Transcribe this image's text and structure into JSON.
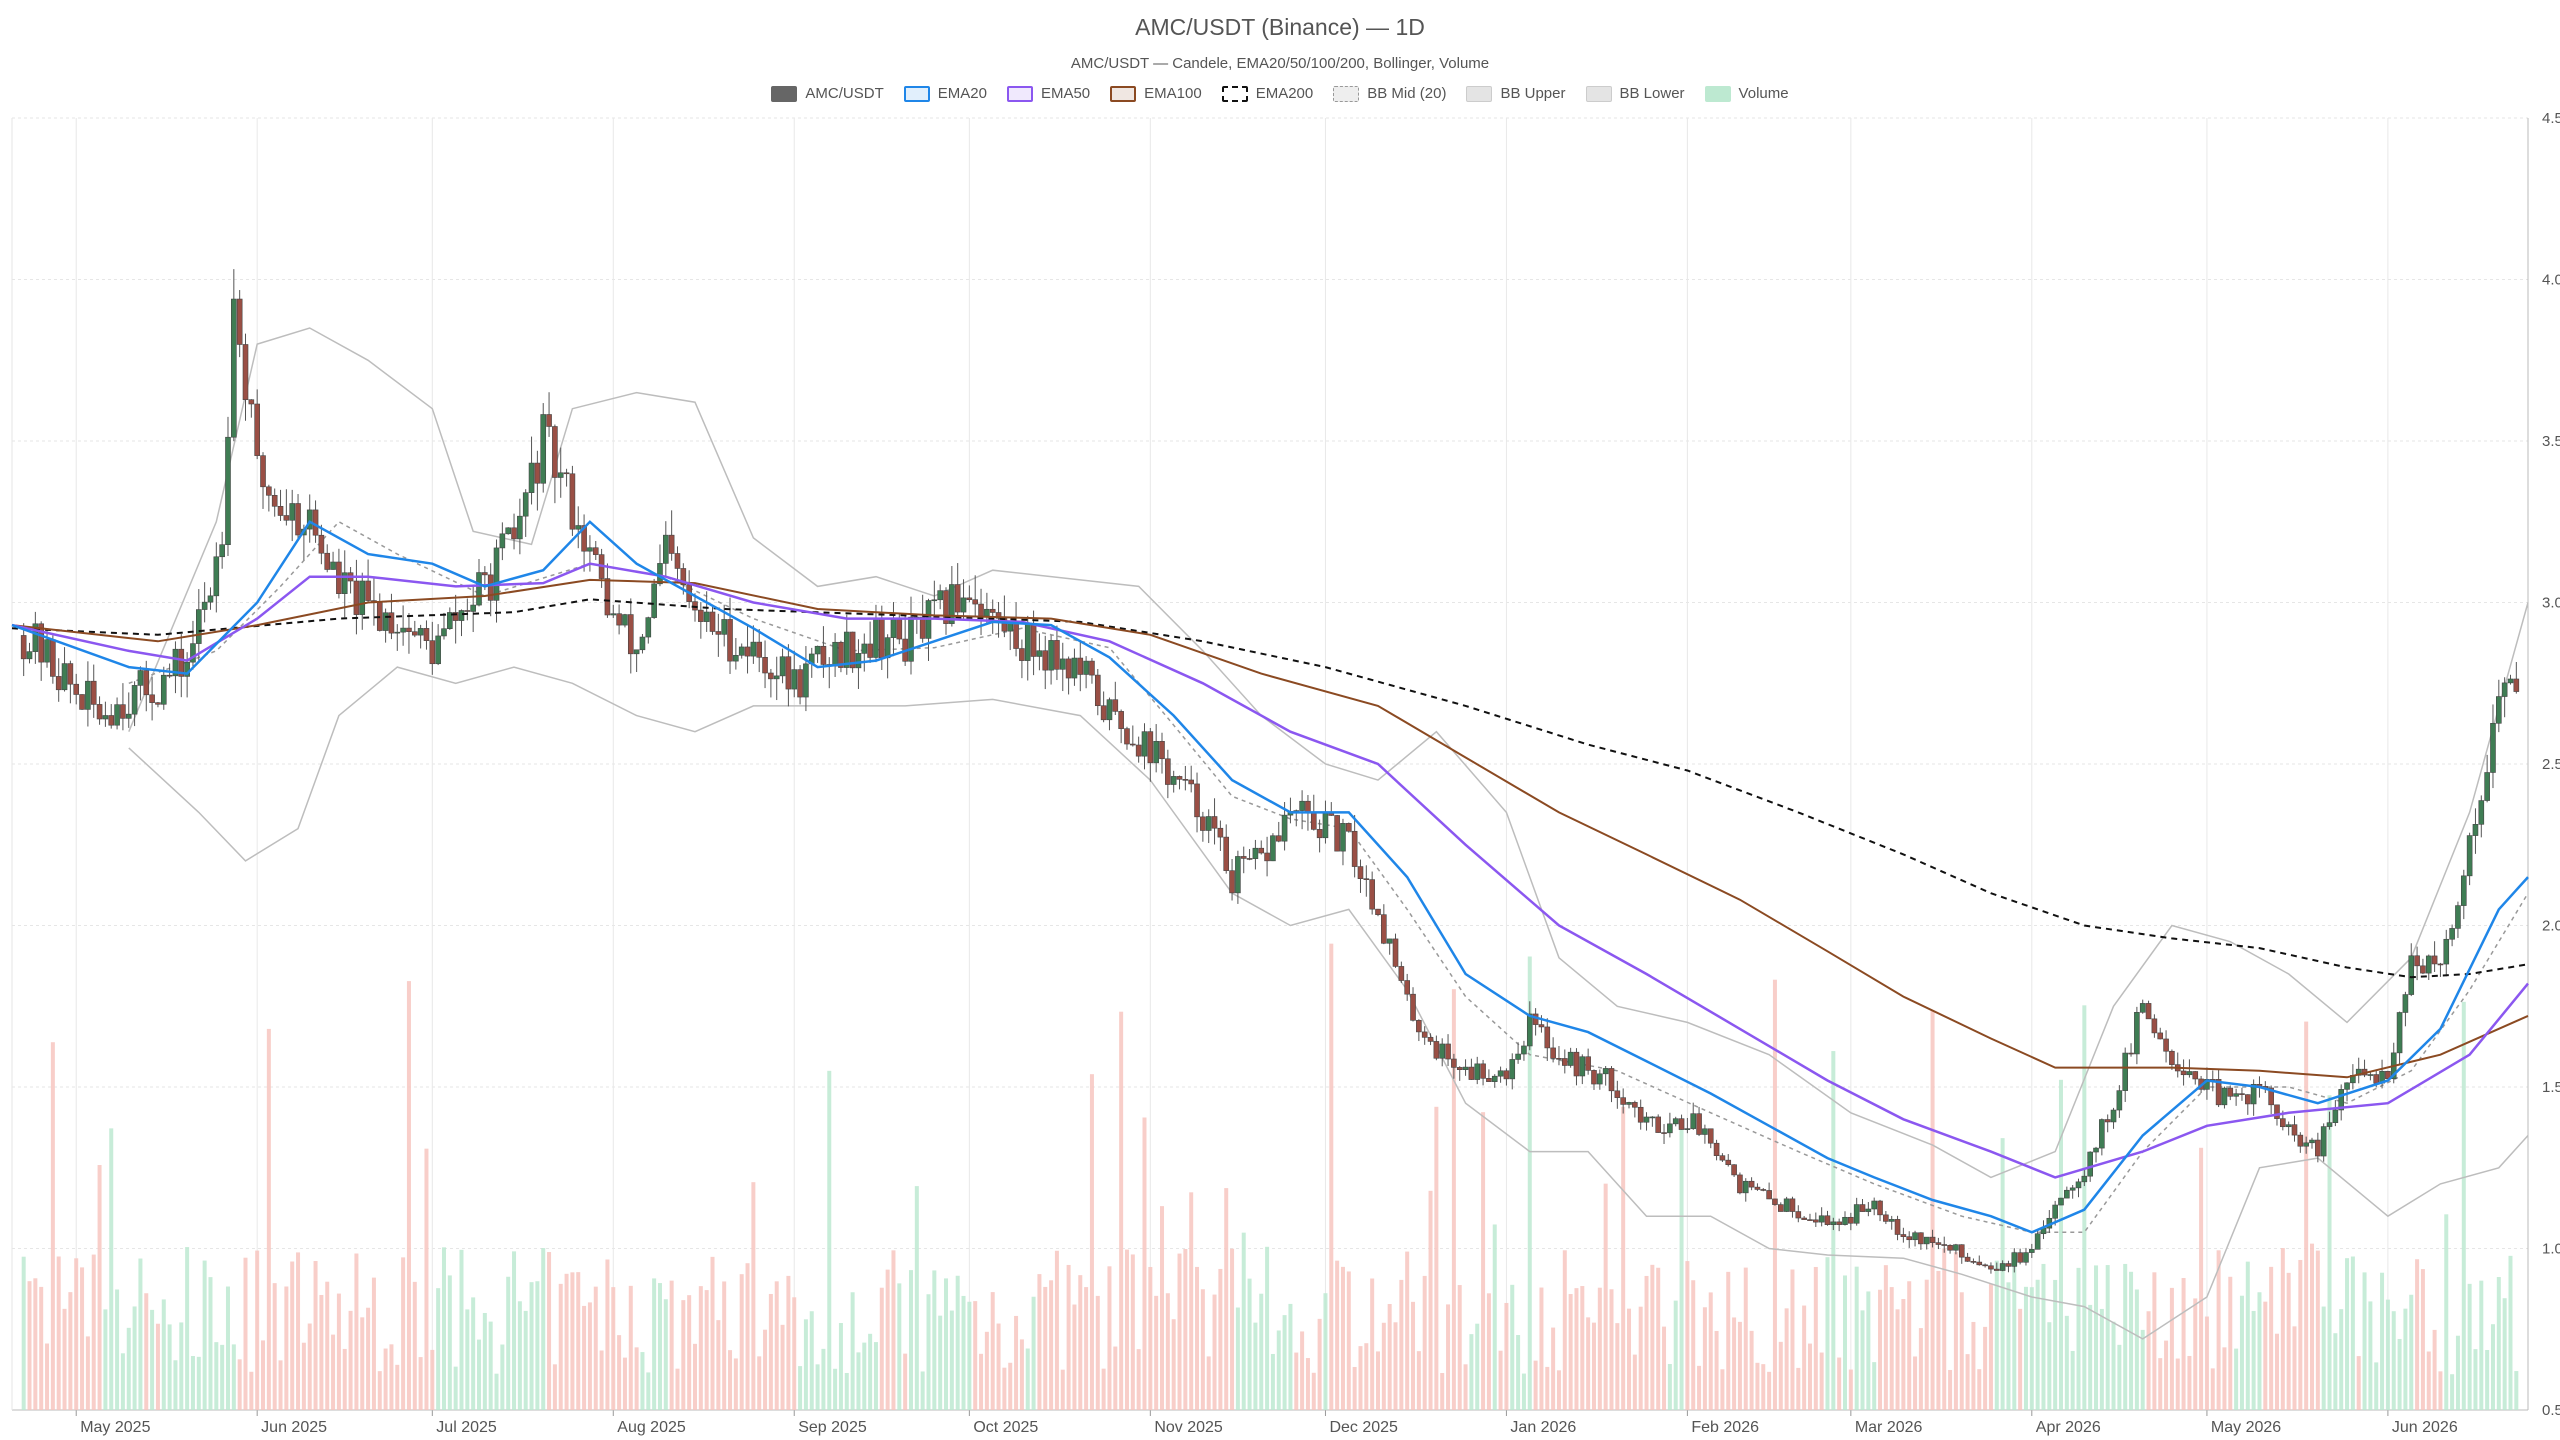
{
  "chart_data": {
    "type": "candlestick",
    "title": "AMC/USDT (Binance) — 1D",
    "subtitle": "AMC/USDT — Candele, EMA20/50/100/200, Bollinger, Volume",
    "legend": [
      {
        "label": "AMC/USDT",
        "color": "#666666",
        "style": "solid-fill"
      },
      {
        "label": "EMA20",
        "color": "#1f86e8",
        "style": "line"
      },
      {
        "label": "EMA50",
        "color": "#8b57f0",
        "style": "line"
      },
      {
        "label": "EMA100",
        "color": "#8b4a22",
        "style": "line"
      },
      {
        "label": "EMA200",
        "color": "#111111",
        "style": "dashed"
      },
      {
        "label": "BB Mid (20)",
        "color": "#999999",
        "style": "dotted"
      },
      {
        "label": "BB Upper",
        "color": "#bbbbbb",
        "style": "band"
      },
      {
        "label": "BB Lower",
        "color": "#bbbbbb",
        "style": "band"
      },
      {
        "label": "Volume",
        "color": "#bde9d1",
        "style": "fill"
      }
    ],
    "x_axis": {
      "type": "date",
      "range": [
        "2025-04-20",
        "2026-06-25"
      ],
      "tick_labels": [
        {
          "date": "2025-05-01",
          "label": "May 2025"
        },
        {
          "date": "2025-06-01",
          "label": "Jun 2025"
        },
        {
          "date": "2025-07-01",
          "label": "Jul 2025"
        },
        {
          "date": "2025-08-01",
          "label": "Aug 2025"
        },
        {
          "date": "2025-09-01",
          "label": "Sep 2025"
        },
        {
          "date": "2025-10-01",
          "label": "Oct 2025"
        },
        {
          "date": "2025-11-01",
          "label": "Nov 2025"
        },
        {
          "date": "2025-12-01",
          "label": "Dec 2025"
        },
        {
          "date": "2026-01-01",
          "label": "Jan 2026"
        },
        {
          "date": "2026-02-01",
          "label": "Feb 2026"
        },
        {
          "date": "2026-03-01",
          "label": "Mar 2026"
        },
        {
          "date": "2026-04-01",
          "label": "Apr 2026"
        },
        {
          "date": "2026-05-01",
          "label": "May 2026"
        },
        {
          "date": "2026-06-01",
          "label": "Jun 2026"
        }
      ]
    },
    "y_axis": {
      "position": "right",
      "min": 0.5,
      "max": 4.5,
      "ticks": [
        "0.5",
        "1.0",
        "1.5",
        "2.0",
        "2.5",
        "3.0",
        "3.5",
        "4.0",
        "4.5"
      ]
    },
    "grid": true,
    "close_series": [
      [
        "2025-04-20",
        2.93
      ],
      [
        "2025-04-25",
        2.85
      ],
      [
        "2025-05-01",
        2.72
      ],
      [
        "2025-05-05",
        2.66
      ],
      [
        "2025-05-10",
        2.71
      ],
      [
        "2025-05-15",
        2.74
      ],
      [
        "2025-05-20",
        2.82
      ],
      [
        "2025-05-24",
        3.05
      ],
      [
        "2025-05-26",
        3.25
      ],
      [
        "2025-05-28",
        3.95
      ],
      [
        "2025-06-01",
        3.4
      ],
      [
        "2025-06-05",
        3.3
      ],
      [
        "2025-06-10",
        3.25
      ],
      [
        "2025-06-15",
        3.05
      ],
      [
        "2025-06-20",
        2.98
      ],
      [
        "2025-06-25",
        2.95
      ],
      [
        "2025-07-01",
        2.85
      ],
      [
        "2025-07-05",
        2.95
      ],
      [
        "2025-07-10",
        3.05
      ],
      [
        "2025-07-15",
        3.2
      ],
      [
        "2025-07-20",
        3.5
      ],
      [
        "2025-07-25",
        3.3
      ],
      [
        "2025-08-01",
        2.95
      ],
      [
        "2025-08-05",
        2.85
      ],
      [
        "2025-08-10",
        3.15
      ],
      [
        "2025-08-15",
        2.95
      ],
      [
        "2025-08-20",
        2.9
      ],
      [
        "2025-08-25",
        2.85
      ],
      [
        "2025-09-01",
        2.75
      ],
      [
        "2025-09-05",
        2.82
      ],
      [
        "2025-09-10",
        2.86
      ],
      [
        "2025-09-15",
        2.9
      ],
      [
        "2025-09-20",
        2.88
      ],
      [
        "2025-09-25",
        2.95
      ],
      [
        "2025-10-01",
        3.05
      ],
      [
        "2025-10-05",
        2.95
      ],
      [
        "2025-10-10",
        2.88
      ],
      [
        "2025-10-15",
        2.85
      ],
      [
        "2025-10-20",
        2.78
      ],
      [
        "2025-10-25",
        2.65
      ],
      [
        "2025-11-01",
        2.55
      ],
      [
        "2025-11-05",
        2.45
      ],
      [
        "2025-11-10",
        2.35
      ],
      [
        "2025-11-15",
        2.15
      ],
      [
        "2025-11-20",
        2.2
      ],
      [
        "2025-11-25",
        2.35
      ],
      [
        "2025-12-01",
        2.3
      ],
      [
        "2025-12-05",
        2.25
      ],
      [
        "2025-12-10",
        2.05
      ],
      [
        "2025-12-15",
        1.75
      ],
      [
        "2025-12-20",
        1.62
      ],
      [
        "2025-12-25",
        1.55
      ],
      [
        "2026-01-01",
        1.55
      ],
      [
        "2026-01-05",
        1.7
      ],
      [
        "2026-01-10",
        1.6
      ],
      [
        "2026-01-15",
        1.55
      ],
      [
        "2026-01-20",
        1.5
      ],
      [
        "2026-01-25",
        1.38
      ],
      [
        "2026-02-01",
        1.4
      ],
      [
        "2026-02-05",
        1.35
      ],
      [
        "2026-02-10",
        1.2
      ],
      [
        "2026-02-15",
        1.15
      ],
      [
        "2026-02-20",
        1.12
      ],
      [
        "2026-02-25",
        1.08
      ],
      [
        "2026-03-01",
        1.1
      ],
      [
        "2026-03-05",
        1.15
      ],
      [
        "2026-03-10",
        1.05
      ],
      [
        "2026-03-15",
        1.02
      ],
      [
        "2026-03-20",
        0.98
      ],
      [
        "2026-03-25",
        0.95
      ],
      [
        "2026-04-01",
        0.98
      ],
      [
        "2026-04-05",
        1.15
      ],
      [
        "2026-04-10",
        1.25
      ],
      [
        "2026-04-15",
        1.45
      ],
      [
        "2026-04-20",
        1.75
      ],
      [
        "2026-04-25",
        1.6
      ],
      [
        "2026-05-01",
        1.5
      ],
      [
        "2026-05-05",
        1.45
      ],
      [
        "2026-05-10",
        1.5
      ],
      [
        "2026-05-15",
        1.35
      ],
      [
        "2026-05-20",
        1.3
      ],
      [
        "2026-05-25",
        1.52
      ],
      [
        "2026-06-01",
        1.55
      ],
      [
        "2026-06-05",
        1.9
      ],
      [
        "2026-06-10",
        1.85
      ],
      [
        "2026-06-15",
        2.25
      ],
      [
        "2026-06-20",
        2.7
      ],
      [
        "2026-06-23",
        2.75
      ],
      [
        "2026-06-25",
        2.75
      ]
    ],
    "ema20": [
      [
        "2025-04-20",
        2.93
      ],
      [
        "2025-05-10",
        2.8
      ],
      [
        "2025-05-20",
        2.78
      ],
      [
        "2025-06-01",
        3.0
      ],
      [
        "2025-06-10",
        3.25
      ],
      [
        "2025-06-20",
        3.15
      ],
      [
        "2025-07-01",
        3.12
      ],
      [
        "2025-07-10",
        3.05
      ],
      [
        "2025-07-20",
        3.1
      ],
      [
        "2025-07-28",
        3.25
      ],
      [
        "2025-08-05",
        3.12
      ],
      [
        "2025-08-15",
        3.02
      ],
      [
        "2025-08-25",
        2.92
      ],
      [
        "2025-09-05",
        2.8
      ],
      [
        "2025-09-15",
        2.82
      ],
      [
        "2025-09-25",
        2.88
      ],
      [
        "2025-10-05",
        2.94
      ],
      [
        "2025-10-15",
        2.93
      ],
      [
        "2025-10-25",
        2.83
      ],
      [
        "2025-11-05",
        2.65
      ],
      [
        "2025-11-15",
        2.45
      ],
      [
        "2025-11-25",
        2.35
      ],
      [
        "2025-12-05",
        2.35
      ],
      [
        "2025-12-15",
        2.15
      ],
      [
        "2025-12-25",
        1.85
      ],
      [
        "2026-01-05",
        1.72
      ],
      [
        "2026-01-15",
        1.67
      ],
      [
        "2026-01-25",
        1.58
      ],
      [
        "2026-02-05",
        1.48
      ],
      [
        "2026-02-15",
        1.38
      ],
      [
        "2026-02-25",
        1.28
      ],
      [
        "2026-03-05",
        1.22
      ],
      [
        "2026-03-15",
        1.15
      ],
      [
        "2026-03-25",
        1.1
      ],
      [
        "2026-04-01",
        1.05
      ],
      [
        "2026-04-10",
        1.12
      ],
      [
        "2026-04-20",
        1.35
      ],
      [
        "2026-05-01",
        1.52
      ],
      [
        "2026-05-10",
        1.5
      ],
      [
        "2026-05-20",
        1.45
      ],
      [
        "2026-06-01",
        1.52
      ],
      [
        "2026-06-10",
        1.68
      ],
      [
        "2026-06-20",
        2.05
      ],
      [
        "2026-06-25",
        2.15
      ]
    ],
    "ema50": [
      [
        "2025-04-20",
        2.93
      ],
      [
        "2025-05-10",
        2.85
      ],
      [
        "2025-05-20",
        2.82
      ],
      [
        "2025-06-01",
        2.95
      ],
      [
        "2025-06-10",
        3.08
      ],
      [
        "2025-06-20",
        3.08
      ],
      [
        "2025-07-05",
        3.05
      ],
      [
        "2025-07-20",
        3.06
      ],
      [
        "2025-07-28",
        3.12
      ],
      [
        "2025-08-10",
        3.08
      ],
      [
        "2025-08-25",
        3.0
      ],
      [
        "2025-09-10",
        2.95
      ],
      [
        "2025-09-25",
        2.95
      ],
      [
        "2025-10-10",
        2.94
      ],
      [
        "2025-10-25",
        2.88
      ],
      [
        "2025-11-10",
        2.75
      ],
      [
        "2025-11-25",
        2.6
      ],
      [
        "2025-12-10",
        2.5
      ],
      [
        "2025-12-25",
        2.25
      ],
      [
        "2026-01-10",
        2.0
      ],
      [
        "2026-01-25",
        1.85
      ],
      [
        "2026-02-10",
        1.68
      ],
      [
        "2026-02-25",
        1.52
      ],
      [
        "2026-03-10",
        1.4
      ],
      [
        "2026-03-25",
        1.3
      ],
      [
        "2026-04-05",
        1.22
      ],
      [
        "2026-04-20",
        1.3
      ],
      [
        "2026-05-01",
        1.38
      ],
      [
        "2026-05-15",
        1.42
      ],
      [
        "2026-06-01",
        1.45
      ],
      [
        "2026-06-15",
        1.6
      ],
      [
        "2026-06-25",
        1.82
      ]
    ],
    "ema100": [
      [
        "2025-04-20",
        2.93
      ],
      [
        "2025-05-15",
        2.88
      ],
      [
        "2025-06-01",
        2.93
      ],
      [
        "2025-06-20",
        3.0
      ],
      [
        "2025-07-10",
        3.02
      ],
      [
        "2025-07-28",
        3.07
      ],
      [
        "2025-08-15",
        3.06
      ],
      [
        "2025-09-05",
        2.98
      ],
      [
        "2025-09-25",
        2.96
      ],
      [
        "2025-10-15",
        2.95
      ],
      [
        "2025-11-01",
        2.9
      ],
      [
        "2025-11-20",
        2.78
      ],
      [
        "2025-12-10",
        2.68
      ],
      [
        "2025-12-25",
        2.52
      ],
      [
        "2026-01-10",
        2.35
      ],
      [
        "2026-01-25",
        2.22
      ],
      [
        "2026-02-10",
        2.08
      ],
      [
        "2026-02-25",
        1.92
      ],
      [
        "2026-03-10",
        1.78
      ],
      [
        "2026-03-25",
        1.65
      ],
      [
        "2026-04-05",
        1.56
      ],
      [
        "2026-04-25",
        1.56
      ],
      [
        "2026-05-10",
        1.55
      ],
      [
        "2026-05-25",
        1.53
      ],
      [
        "2026-06-10",
        1.6
      ],
      [
        "2026-06-25",
        1.72
      ]
    ],
    "ema200": [
      [
        "2025-04-20",
        2.92
      ],
      [
        "2025-05-15",
        2.9
      ],
      [
        "2025-06-15",
        2.95
      ],
      [
        "2025-07-15",
        2.97
      ],
      [
        "2025-07-28",
        3.01
      ],
      [
        "2025-08-20",
        2.98
      ],
      [
        "2025-09-20",
        2.96
      ],
      [
        "2025-10-20",
        2.94
      ],
      [
        "2025-11-10",
        2.88
      ],
      [
        "2025-12-01",
        2.8
      ],
      [
        "2025-12-25",
        2.68
      ],
      [
        "2026-01-15",
        2.56
      ],
      [
        "2026-02-01",
        2.48
      ],
      [
        "2026-02-20",
        2.35
      ],
      [
        "2026-03-10",
        2.22
      ],
      [
        "2026-03-25",
        2.1
      ],
      [
        "2026-04-10",
        2.0
      ],
      [
        "2026-04-25",
        1.96
      ],
      [
        "2026-05-10",
        1.93
      ],
      [
        "2026-05-25",
        1.87
      ],
      [
        "2026-06-05",
        1.84
      ],
      [
        "2026-06-15",
        1.85
      ],
      [
        "2026-06-25",
        1.88
      ]
    ],
    "bb_upper": [
      [
        "2025-05-10",
        2.6
      ],
      [
        "2025-05-25",
        3.25
      ],
      [
        "2025-06-01",
        3.8
      ],
      [
        "2025-06-10",
        3.85
      ],
      [
        "2025-06-20",
        3.75
      ],
      [
        "2025-07-01",
        3.6
      ],
      [
        "2025-07-08",
        3.22
      ],
      [
        "2025-07-18",
        3.18
      ],
      [
        "2025-07-25",
        3.6
      ],
      [
        "2025-08-05",
        3.65
      ],
      [
        "2025-08-15",
        3.62
      ],
      [
        "2025-08-25",
        3.2
      ],
      [
        "2025-09-05",
        3.05
      ],
      [
        "2025-09-15",
        3.08
      ],
      [
        "2025-09-25",
        3.02
      ],
      [
        "2025-10-05",
        3.1
      ],
      [
        "2025-10-20",
        3.07
      ],
      [
        "2025-10-30",
        3.05
      ],
      [
        "2025-11-10",
        2.85
      ],
      [
        "2025-11-20",
        2.65
      ],
      [
        "2025-12-01",
        2.5
      ],
      [
        "2025-12-10",
        2.45
      ],
      [
        "2025-12-20",
        2.6
      ],
      [
        "2026-01-01",
        2.35
      ],
      [
        "2026-01-10",
        1.9
      ],
      [
        "2026-01-20",
        1.75
      ],
      [
        "2026-02-01",
        1.7
      ],
      [
        "2026-02-15",
        1.6
      ],
      [
        "2026-03-01",
        1.42
      ],
      [
        "2026-03-15",
        1.32
      ],
      [
        "2026-03-25",
        1.22
      ],
      [
        "2026-04-05",
        1.3
      ],
      [
        "2026-04-15",
        1.75
      ],
      [
        "2026-04-25",
        2.0
      ],
      [
        "2026-05-05",
        1.95
      ],
      [
        "2026-05-15",
        1.85
      ],
      [
        "2026-05-25",
        1.7
      ],
      [
        "2026-06-05",
        1.9
      ],
      [
        "2026-06-15",
        2.35
      ],
      [
        "2026-06-25",
        3.0
      ]
    ],
    "bb_lower": [
      [
        "2025-05-10",
        2.55
      ],
      [
        "2025-05-22",
        2.35
      ],
      [
        "2025-05-30",
        2.2
      ],
      [
        "2025-06-08",
        2.3
      ],
      [
        "2025-06-15",
        2.65
      ],
      [
        "2025-06-25",
        2.8
      ],
      [
        "2025-07-05",
        2.75
      ],
      [
        "2025-07-15",
        2.8
      ],
      [
        "2025-07-25",
        2.75
      ],
      [
        "2025-08-05",
        2.65
      ],
      [
        "2025-08-15",
        2.6
      ],
      [
        "2025-08-25",
        2.68
      ],
      [
        "2025-09-05",
        2.68
      ],
      [
        "2025-09-20",
        2.68
      ],
      [
        "2025-10-05",
        2.7
      ],
      [
        "2025-10-20",
        2.65
      ],
      [
        "2025-11-01",
        2.45
      ],
      [
        "2025-11-15",
        2.1
      ],
      [
        "2025-11-25",
        2.0
      ],
      [
        "2025-12-05",
        2.05
      ],
      [
        "2025-12-15",
        1.8
      ],
      [
        "2025-12-25",
        1.45
      ],
      [
        "2026-01-05",
        1.3
      ],
      [
        "2026-01-15",
        1.3
      ],
      [
        "2026-01-25",
        1.1
      ],
      [
        "2026-02-05",
        1.1
      ],
      [
        "2026-02-15",
        1.0
      ],
      [
        "2026-02-25",
        0.98
      ],
      [
        "2026-03-10",
        0.97
      ],
      [
        "2026-03-20",
        0.92
      ],
      [
        "2026-04-01",
        0.85
      ],
      [
        "2026-04-10",
        0.82
      ],
      [
        "2026-04-20",
        0.72
      ],
      [
        "2026-05-01",
        0.85
      ],
      [
        "2026-05-10",
        1.25
      ],
      [
        "2026-05-20",
        1.28
      ],
      [
        "2026-06-01",
        1.1
      ],
      [
        "2026-06-10",
        1.2
      ],
      [
        "2026-06-20",
        1.25
      ],
      [
        "2026-06-25",
        1.35
      ]
    ],
    "bb_mid": [
      [
        "2025-05-10",
        2.75
      ],
      [
        "2025-05-25",
        2.85
      ],
      [
        "2025-06-05",
        3.05
      ],
      [
        "2025-06-15",
        3.25
      ],
      [
        "2025-06-25",
        3.15
      ],
      [
        "2025-07-10",
        3.02
      ],
      [
        "2025-07-28",
        3.12
      ],
      [
        "2025-08-10",
        3.08
      ],
      [
        "2025-08-25",
        2.95
      ],
      [
        "2025-09-10",
        2.85
      ],
      [
        "2025-09-25",
        2.86
      ],
      [
        "2025-10-10",
        2.92
      ],
      [
        "2025-10-25",
        2.86
      ],
      [
        "2025-11-05",
        2.62
      ],
      [
        "2025-11-15",
        2.4
      ],
      [
        "2025-11-25",
        2.33
      ],
      [
        "2025-12-05",
        2.3
      ],
      [
        "2025-12-15",
        2.05
      ],
      [
        "2025-12-25",
        1.78
      ],
      [
        "2026-01-05",
        1.6
      ],
      [
        "2026-01-20",
        1.55
      ],
      [
        "2026-02-05",
        1.42
      ],
      [
        "2026-02-20",
        1.3
      ],
      [
        "2026-03-05",
        1.2
      ],
      [
        "2026-03-20",
        1.1
      ],
      [
        "2026-04-01",
        1.05
      ],
      [
        "2026-04-10",
        1.05
      ],
      [
        "2026-04-20",
        1.3
      ],
      [
        "2026-05-01",
        1.5
      ],
      [
        "2026-05-15",
        1.5
      ],
      [
        "2026-05-25",
        1.45
      ],
      [
        "2026-06-05",
        1.55
      ],
      [
        "2026-06-15",
        1.8
      ],
      [
        "2026-06-25",
        2.1
      ]
    ]
  }
}
